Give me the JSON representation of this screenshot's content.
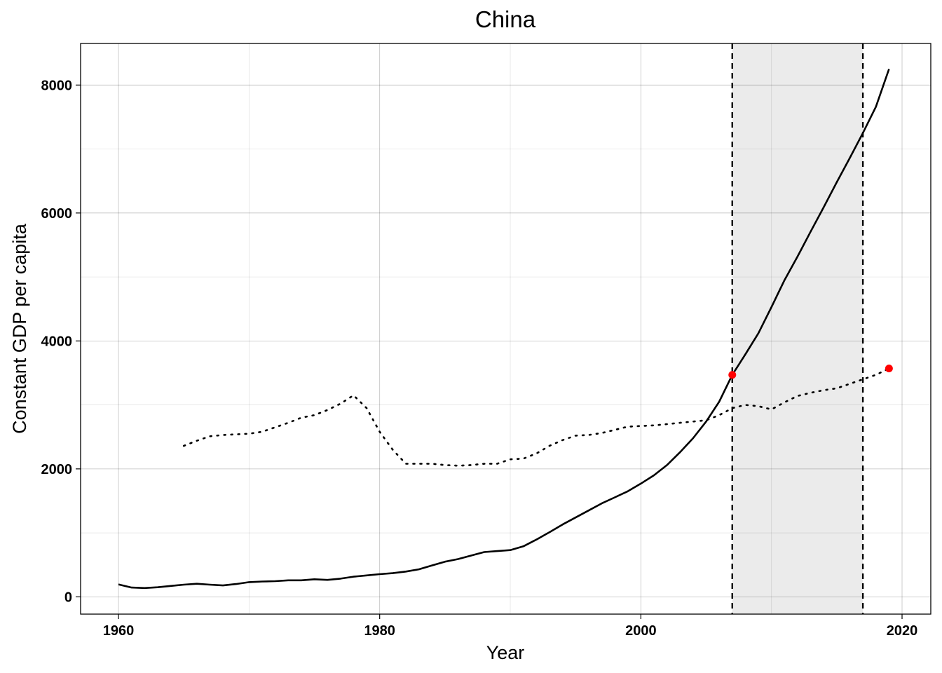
{
  "chart_data": {
    "type": "line",
    "title": "China",
    "xlabel": "Year",
    "ylabel": "Constant GDP per capita",
    "xlim": [
      1957.1,
      2022.2
    ],
    "ylim": [
      -270,
      8650
    ],
    "x_ticks": [
      1960,
      1980,
      2000,
      2020
    ],
    "y_ticks": [
      0,
      2000,
      4000,
      6000,
      8000
    ],
    "grid": true,
    "legend": "none",
    "shaded_region": {
      "x": [
        2007,
        2017
      ],
      "color": "#ebebeb"
    },
    "vlines": [
      2007,
      2017
    ],
    "series": [
      {
        "style": "solid",
        "color": "#000000",
        "x": [
          1960,
          1961,
          1962,
          1963,
          1964,
          1965,
          1966,
          1967,
          1968,
          1969,
          1970,
          1971,
          1972,
          1973,
          1974,
          1975,
          1976,
          1977,
          1978,
          1979,
          1980,
          1981,
          1982,
          1983,
          1984,
          1985,
          1986,
          1987,
          1988,
          1989,
          1990,
          1991,
          1992,
          1993,
          1994,
          1995,
          1996,
          1997,
          1998,
          1999,
          2000,
          2001,
          2002,
          2003,
          2004,
          2005,
          2006,
          2007,
          2008,
          2009,
          2010,
          2011,
          2012,
          2013,
          2014,
          2015,
          2016,
          2017,
          2018,
          2019
        ],
        "values": [
          195,
          145,
          138,
          150,
          170,
          190,
          205,
          190,
          178,
          200,
          230,
          240,
          245,
          258,
          258,
          275,
          265,
          285,
          315,
          335,
          355,
          370,
          395,
          430,
          490,
          550,
          590,
          645,
          700,
          715,
          730,
          790,
          895,
          1010,
          1130,
          1240,
          1350,
          1460,
          1555,
          1650,
          1770,
          1900,
          2060,
          2260,
          2480,
          2740,
          3050,
          3470,
          3790,
          4120,
          4530,
          4950,
          5320,
          5710,
          6090,
          6480,
          6860,
          7250,
          7660,
          8250
        ]
      },
      {
        "style": "dotted",
        "color": "#000000",
        "x": [
          1965,
          1966,
          1967,
          1968,
          1969,
          1970,
          1971,
          1972,
          1973,
          1974,
          1975,
          1976,
          1977,
          1978,
          1979,
          1980,
          1981,
          1982,
          1983,
          1984,
          1985,
          1986,
          1987,
          1988,
          1989,
          1990,
          1991,
          1992,
          1993,
          1994,
          1995,
          1996,
          1997,
          1998,
          1999,
          2000,
          2001,
          2002,
          2003,
          2004,
          2005,
          2006,
          2007,
          2008,
          2009,
          2010,
          2011,
          2012,
          2013,
          2014,
          2015,
          2016,
          2017,
          2018,
          2019
        ],
        "values": [
          2360,
          2440,
          2510,
          2530,
          2540,
          2550,
          2580,
          2650,
          2720,
          2800,
          2840,
          2920,
          3020,
          3150,
          2950,
          2580,
          2300,
          2080,
          2080,
          2080,
          2060,
          2050,
          2060,
          2080,
          2080,
          2150,
          2160,
          2240,
          2360,
          2450,
          2520,
          2530,
          2560,
          2610,
          2660,
          2670,
          2680,
          2700,
          2720,
          2740,
          2760,
          2840,
          2950,
          3000,
          2980,
          2930,
          3040,
          3140,
          3190,
          3230,
          3260,
          3330,
          3400,
          3470,
          3570
        ]
      }
    ],
    "highlight_points": [
      {
        "x": 2007,
        "y": 3470,
        "color": "#ff0000"
      },
      {
        "x": 2019,
        "y": 3570,
        "color": "#ff0000"
      }
    ]
  }
}
